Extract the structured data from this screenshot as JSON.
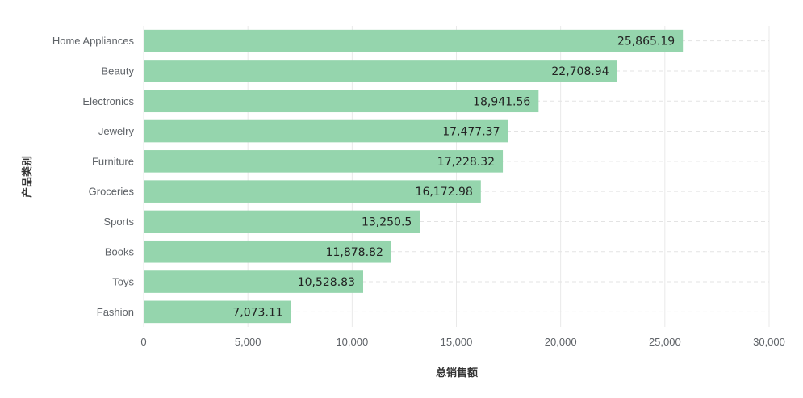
{
  "chart_data": {
    "type": "bar",
    "orientation": "horizontal",
    "categories": [
      "Home Appliances",
      "Beauty",
      "Electronics",
      "Jewelry",
      "Furniture",
      "Groceries",
      "Sports",
      "Books",
      "Toys",
      "Fashion"
    ],
    "values": [
      25865.19,
      22708.94,
      18941.56,
      17477.37,
      17228.32,
      16172.98,
      13250.5,
      11878.82,
      10528.83,
      7073.11
    ],
    "value_labels": [
      "25,865.19",
      "22,708.94",
      "18,941.56",
      "17,477.37",
      "17,228.32",
      "16,172.98",
      "13,250.5",
      "11,878.82",
      "10,528.83",
      "7,073.11"
    ],
    "xlabel": "总销售额",
    "ylabel": "产品类别",
    "xlim": [
      0,
      30000
    ],
    "xticks": [
      0,
      5000,
      10000,
      15000,
      20000,
      25000,
      30000
    ],
    "xtick_labels": [
      "0",
      "5,000",
      "10,000",
      "15,000",
      "20,000",
      "25,000",
      "30,000"
    ],
    "grid": true,
    "bar_color": "#95d5ad"
  }
}
